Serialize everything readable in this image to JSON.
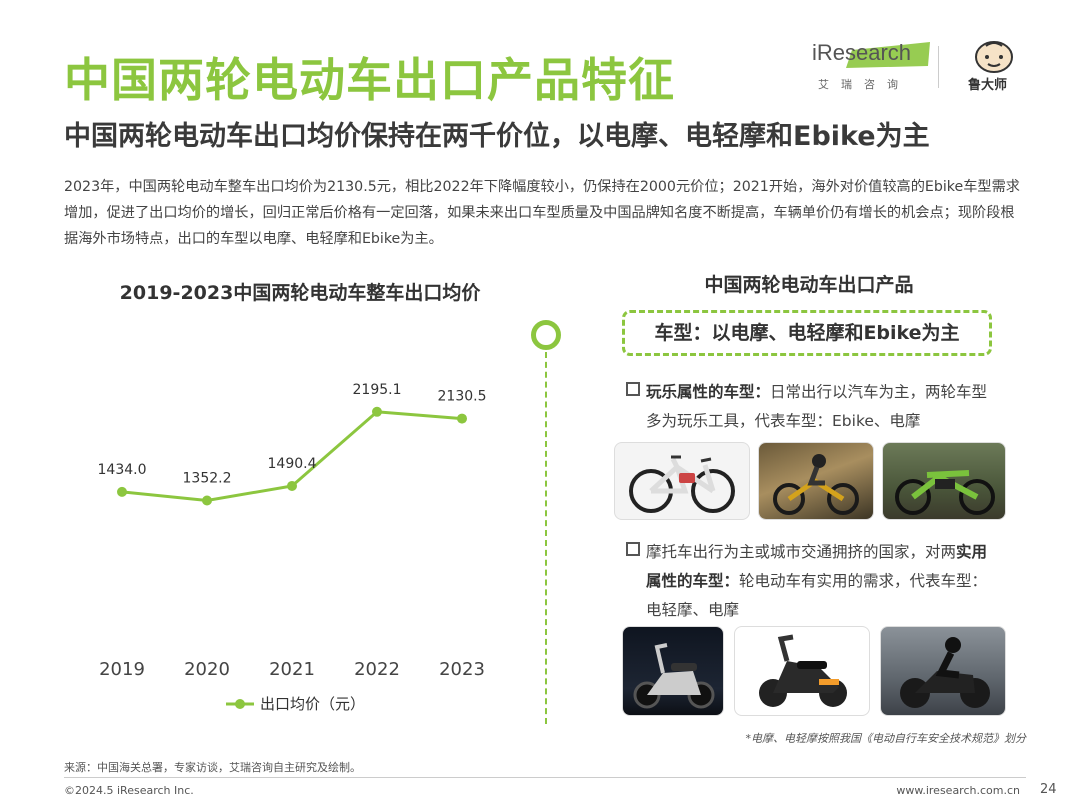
{
  "header": {
    "title": "中国两轮电动车出口产品特征",
    "subtitle": "中国两轮电动车出口均价保持在两千价位，以电摩、电轻摩和Ebike为主",
    "intro": "2023年，中国两轮电动车整车出口均价为2130.5元，相比2022年下降幅度较小，仍保持在2000元价位；2021开始，海外对价值较高的Ebike车型需求增加，促进了出口均价的增长，回归正常后价格有一定回落，如果未来出口车型质量及中国品牌知名度不断提高，车辆单价仍有增长的机会点；现阶段根据海外市场特点，出口的车型以电摩、电轻摩和Ebike为主。"
  },
  "logos": {
    "iresearch": "iResearch",
    "iresearch_cn": "艾瑞咨询",
    "ludashi": "鲁大师"
  },
  "chart_data": {
    "type": "line",
    "title": "2019-2023中国两轮电动车整车出口均价",
    "categories": [
      "2019",
      "2020",
      "2021",
      "2022",
      "2023"
    ],
    "series": [
      {
        "name": "出口均价（元）",
        "values": [
          1434.0,
          1352.2,
          1490.4,
          2195.1,
          2130.5
        ],
        "labels": [
          "1434.0",
          "1352.2",
          "1490.4",
          "2195.1",
          "2130.5"
        ],
        "color": "#8cc63f"
      }
    ],
    "ylim": [
      0,
      2500
    ],
    "grid": false,
    "legend": "bottom"
  },
  "right": {
    "title": "中国两轮电动车出口产品",
    "highlight": "车型：以电摩、电轻摩和Ebike为主",
    "b1_bold": "玩乐属性的车型：",
    "b1_text": "日常出行以汽车为主，两轮车型",
    "b1_line2": "多为玩乐工具，代表车型：Ebike、电摩",
    "b2_text1": "摩托车出行为主或城市交通拥挤的国家，对两",
    "b2_bold1": "实用",
    "b2_bold2": "属性的车型：",
    "b2_text2": "轮电动车有实用的需求，代表车型：",
    "b2_line3": "电轻摩、电摩",
    "note": "*电摩、电轻摩按照我国《电动自行车安全技术规范》划分"
  },
  "footer": {
    "source": "来源：中国海关总署，专家访谈，艾瑞咨询自主研究及绘制。",
    "copyright": "©2024.5 iResearch Inc.",
    "url": "www.iresearch.com.cn",
    "page": "24"
  }
}
